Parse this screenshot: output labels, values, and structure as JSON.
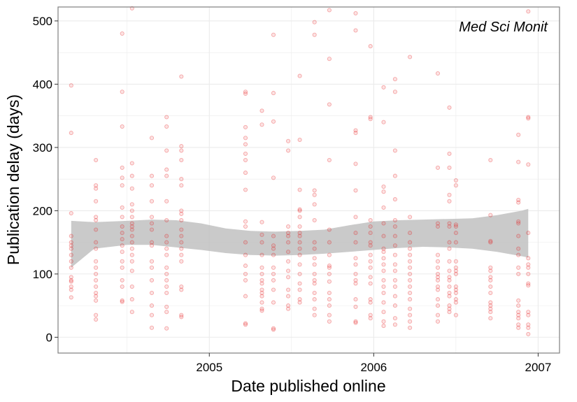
{
  "chart_data": {
    "type": "scatter",
    "title": "",
    "annotation": "Med Sci Monit",
    "xlabel": "Date published online",
    "ylabel": "Publication delay (days)",
    "x_ticks": [
      "2005",
      "2006",
      "2007"
    ],
    "y_ticks": [
      "0",
      "100",
      "200",
      "300",
      "400",
      "500"
    ],
    "ylim": [
      -25,
      522
    ],
    "grid": true,
    "colors": {
      "points": "#e41a1c",
      "band": "#bdbdbd",
      "grid": "#ebebeb",
      "panel_border": "#7f7f7f"
    },
    "points": [
      {
        "x": "2004.16",
        "y": [
          398,
          323,
          196,
          160,
          150,
          145,
          140,
          130,
          120,
          110,
          95,
          90,
          88,
          80,
          75,
          63
        ]
      },
      {
        "x": "2004.31",
        "y": [
          280,
          240,
          235,
          215,
          190,
          185,
          170,
          150,
          140,
          120,
          110,
          100,
          90,
          80,
          70,
          65,
          58,
          35,
          28
        ]
      },
      {
        "x": "2004.47",
        "y": [
          480,
          388,
          333,
          268,
          252,
          240,
          205,
          190,
          175,
          165,
          155,
          145,
          135,
          120,
          110,
          90,
          80,
          58,
          56
        ]
      },
      {
        "x": "2004.53",
        "y": [
          520,
          275,
          255,
          235,
          210,
          200,
          190,
          180,
          175,
          170,
          160,
          150,
          140,
          130,
          120,
          105,
          80,
          60,
          40
        ]
      },
      {
        "x": "2004.65",
        "y": [
          315,
          255,
          240,
          215,
          190,
          180,
          170,
          150,
          145,
          120,
          110,
          90,
          70,
          50,
          35,
          15
        ]
      },
      {
        "x": "2004.74",
        "y": [
          348,
          333,
          295,
          265,
          255,
          215,
          185,
          160,
          150,
          140,
          130,
          110,
          100,
          90,
          80,
          70,
          48,
          40,
          14
        ]
      },
      {
        "x": "2004.83",
        "y": [
          412,
          302,
          295,
          280,
          250,
          240,
          200,
          195,
          185,
          170,
          160,
          150,
          140,
          130,
          120,
          80,
          75,
          35,
          32
        ]
      },
      {
        "x": "2005.22",
        "y": [
          388,
          385,
          332,
          315,
          305,
          290,
          280,
          260,
          233,
          183,
          175,
          150,
          130,
          113,
          100,
          90,
          65,
          22,
          20
        ]
      },
      {
        "x": "2005.32",
        "y": [
          358,
          336,
          182,
          162,
          150,
          130,
          110,
          100,
          90,
          85,
          75,
          70,
          65,
          55,
          45,
          42
        ]
      },
      {
        "x": "2005.39",
        "y": [
          478,
          386,
          341,
          252,
          160,
          145,
          140,
          130,
          110,
          100,
          90,
          75,
          55,
          14,
          12
        ]
      },
      {
        "x": "2005.48",
        "y": [
          310,
          295,
          175,
          165,
          160,
          150,
          135,
          120,
          105,
          95,
          75,
          65,
          50,
          45
        ]
      },
      {
        "x": "2005.55",
        "y": [
          413,
          312,
          233,
          202,
          200,
          190,
          175,
          165,
          160,
          150,
          140,
          130,
          115,
          100,
          85,
          75,
          60,
          55
        ]
      },
      {
        "x": "2005.64",
        "y": [
          498,
          478,
          232,
          225,
          210,
          185,
          150,
          140,
          125,
          115,
          100,
          90,
          85,
          70,
          60,
          45,
          35
        ]
      },
      {
        "x": "2005.73",
        "y": [
          517,
          440,
          368,
          280,
          170,
          150,
          130,
          113,
          110,
          100,
          88,
          70,
          60,
          50,
          35,
          25
        ]
      },
      {
        "x": "2005.89",
        "y": [
          512,
          485,
          327,
          323,
          274,
          232,
          190,
          165,
          150,
          125,
          115,
          100,
          90,
          85,
          60,
          48,
          25,
          23
        ]
      },
      {
        "x": "2005.98",
        "y": [
          460,
          348,
          345,
          185,
          175,
          165,
          150,
          145,
          130,
          120,
          110,
          95,
          85,
          60,
          55,
          35,
          30
        ]
      },
      {
        "x": "2006.06",
        "y": [
          395,
          340,
          238,
          230,
          205,
          180,
          160,
          140,
          135,
          125,
          115,
          105,
          90,
          80,
          70,
          55,
          40,
          25,
          18
        ]
      },
      {
        "x": "2006.13",
        "y": [
          408,
          388,
          295,
          255,
          218,
          185,
          175,
          160,
          145,
          130,
          115,
          105,
          90,
          80,
          65,
          50,
          30,
          20
        ]
      },
      {
        "x": "2006.22",
        "y": [
          443,
          190,
          165,
          150,
          140,
          130,
          120,
          110,
          100,
          90,
          80,
          70,
          60,
          45,
          35,
          25,
          15
        ]
      },
      {
        "x": "2006.39",
        "y": [
          417,
          268,
          180,
          175,
          130,
          120,
          110,
          100,
          95,
          90,
          80,
          75,
          60,
          50,
          35,
          25
        ]
      },
      {
        "x": "2006.46",
        "y": [
          363,
          290,
          268,
          225,
          215,
          180,
          175,
          150,
          140,
          120,
          105,
          95,
          90,
          80,
          70,
          65,
          50,
          45,
          40
        ]
      },
      {
        "x": "2006.50",
        "y": [
          248,
          240,
          178,
          175,
          165,
          150,
          120,
          110,
          105,
          100,
          80,
          75,
          70,
          60,
          55,
          35
        ]
      },
      {
        "x": "2006.71",
        "y": [
          280,
          193,
          152,
          150,
          110,
          105,
          95,
          90,
          80,
          70,
          55,
          50,
          45,
          40,
          30
        ]
      },
      {
        "x": "2006.88",
        "y": [
          320,
          277,
          217,
          213,
          183,
          180,
          160,
          140,
          130,
          110,
          100,
          58,
          50,
          40,
          35,
          30,
          20,
          15
        ]
      },
      {
        "x": "2006.94",
        "y": [
          515,
          348,
          346,
          273,
          165,
          125,
          115,
          110,
          100,
          85,
          82,
          40,
          35,
          20,
          15,
          5
        ]
      }
    ],
    "smooth_band": {
      "x": [
        "2004.16",
        "2004.30",
        "2004.50",
        "2004.65",
        "2004.80",
        "2004.95",
        "2005.10",
        "2005.25",
        "2005.40",
        "2005.55",
        "2005.70",
        "2005.85",
        "2006.00",
        "2006.15",
        "2006.30",
        "2006.45",
        "2006.60",
        "2006.75",
        "2006.90",
        "2006.94"
      ],
      "lower": [
        110,
        140,
        146,
        146,
        142,
        138,
        133,
        130,
        129,
        130,
        132,
        135,
        138,
        141,
        143,
        142,
        140,
        135,
        128,
        126
      ],
      "upper": [
        184,
        182,
        184,
        186,
        185,
        180,
        172,
        168,
        167,
        168,
        170,
        177,
        183,
        185,
        186,
        187,
        188,
        193,
        200,
        203
      ]
    }
  }
}
